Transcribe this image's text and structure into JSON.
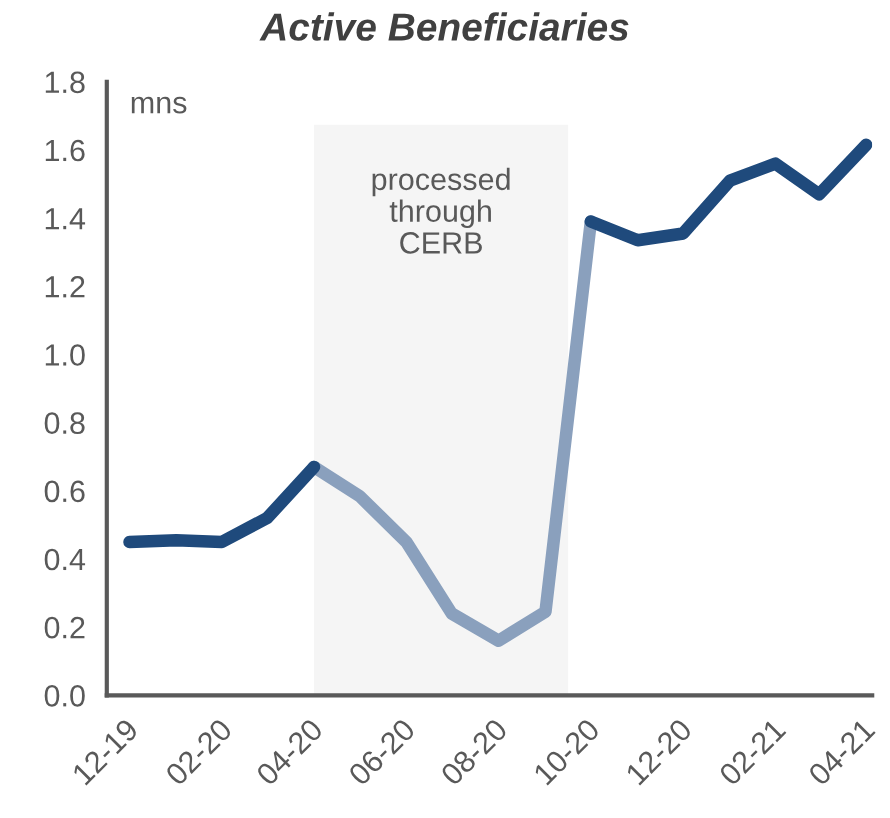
{
  "chart_data": {
    "type": "line",
    "title": "Active Beneficiaries",
    "ylabel": "mns",
    "x": [
      "2019-12-16",
      "2020-01-16",
      "2020-02-15",
      "2020-03-16",
      "2020-04-16",
      "2020-05-16",
      "2020-06-16",
      "2020-07-16",
      "2020-08-16",
      "2020-09-16",
      "2020-10-16",
      "2020-11-16",
      "2020-12-16",
      "2021-01-16",
      "2021-02-15",
      "2021-03-16",
      "2021-04-16"
    ],
    "series": [
      {
        "color": "#1f4a7c",
        "values": [
          0.45,
          0.455,
          0.45,
          0.52,
          0.67,
          null,
          null,
          null,
          null,
          null,
          1.39,
          1.335,
          1.355,
          1.51,
          1.56,
          1.47,
          1.615
        ]
      },
      {
        "color": "#8aa0bd",
        "values": [
          null,
          null,
          null,
          null,
          0.67,
          0.585,
          0.45,
          0.24,
          0.16,
          0.245,
          1.39,
          null,
          null,
          null,
          null,
          null,
          null
        ]
      }
    ],
    "xlim": [
      "2019-12-01",
      "2021-04-20"
    ],
    "ylim": [
      0,
      1.8
    ],
    "xticks": [
      {
        "value": "2019-12-01",
        "label": "12-19"
      },
      {
        "value": "2020-02-01",
        "label": "02-20"
      },
      {
        "value": "2020-04-01",
        "label": "04-20"
      },
      {
        "value": "2020-06-01",
        "label": "06-20"
      },
      {
        "value": "2020-08-01",
        "label": "08-20"
      },
      {
        "value": "2020-10-01",
        "label": "10-20"
      },
      {
        "value": "2020-12-01",
        "label": "12-20"
      },
      {
        "value": "2021-02-01",
        "label": "02-21"
      },
      {
        "value": "2021-04-01",
        "label": "04-21"
      }
    ],
    "yticks": [
      {
        "value": 0,
        "label": "0.0"
      },
      0.2,
      0.4,
      0.6,
      0.8,
      {
        "value": 1,
        "label": "1.0"
      },
      1.2,
      1.4,
      1.6,
      1.8
    ],
    "bands": [
      {
        "axis": "x",
        "from": "2020-04-16",
        "to": "2020-10-01",
        "label": "processed\nthrough\nCERB",
        "color": "#f5f5f5"
      }
    ],
    "grid": false,
    "legend": false
  }
}
